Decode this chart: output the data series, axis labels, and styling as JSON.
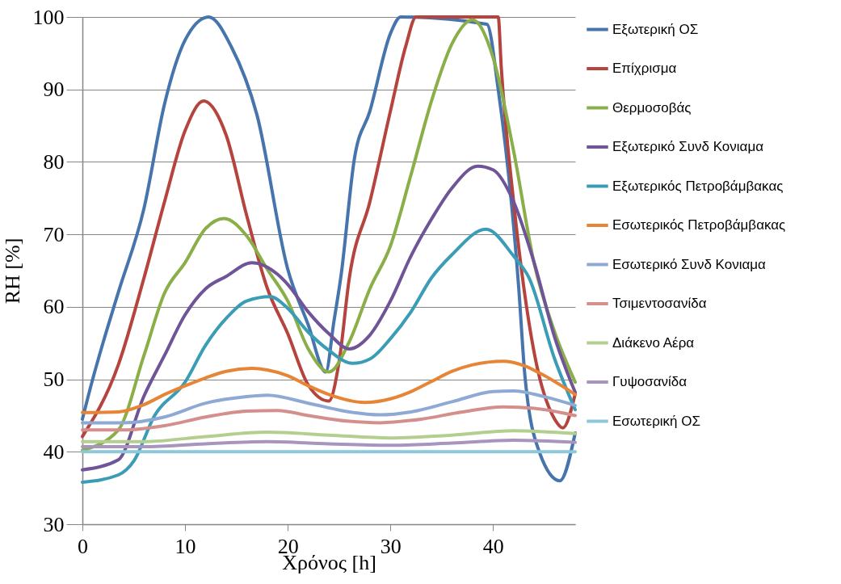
{
  "chart_data": {
    "type": "line",
    "xlabel": "Χρόνος [h]",
    "ylabel": "RH [%]",
    "xlim": [
      0,
      48
    ],
    "xticks": [
      0,
      10,
      20,
      30,
      40
    ],
    "ylim": [
      30,
      100
    ],
    "yticks": [
      30,
      40,
      50,
      60,
      70,
      80,
      90,
      100
    ],
    "grid": "y",
    "legend": "right",
    "series": [
      {
        "name": "Εξωτερική ΟΣ",
        "color": "#4674ad",
        "x": [
          0,
          1,
          2,
          3.5,
          6,
          8,
          10,
          12.3,
          14.5,
          17,
          20,
          22,
          23.7,
          24.5,
          25.2,
          26.5,
          28,
          30,
          31,
          39.4,
          40.5,
          42.5,
          43.1,
          44.5,
          46.5,
          48
        ],
        "values": [
          44.5,
          50,
          55,
          62,
          73.6,
          88,
          96.8,
          100,
          95.9,
          86.5,
          65.2,
          57.5,
          51,
          58,
          64.4,
          80.5,
          87,
          97.7,
          100,
          99,
          90,
          62.6,
          50.5,
          40,
          36,
          42.6
        ]
      },
      {
        "name": "Επίχρισμα",
        "color": "#b5443f",
        "x": [
          0,
          3.5,
          6,
          8,
          10,
          11.8,
          14,
          16,
          18,
          20,
          22,
          24,
          25,
          26,
          28,
          30,
          31.5,
          32.5,
          36,
          40.5,
          40.8,
          42,
          43,
          44,
          46,
          46.8,
          48
        ],
        "values": [
          42.1,
          52,
          64,
          74.5,
          84.3,
          88.4,
          83.7,
          72.6,
          62.6,
          56.3,
          49.2,
          47,
          52.4,
          64,
          74.5,
          87,
          96,
          100,
          100,
          100,
          93,
          74.5,
          62.6,
          53.7,
          44.5,
          43.3,
          48
        ]
      },
      {
        "name": "Θερμοσοβάς",
        "color": "#8aae48",
        "x": [
          0,
          3.5,
          6,
          8,
          10,
          12,
          13.8,
          16,
          18,
          20,
          22,
          24,
          26,
          28,
          30,
          32,
          34,
          36,
          38,
          40,
          42,
          44,
          46,
          48
        ],
        "values": [
          40.2,
          43,
          53.3,
          61.9,
          66.1,
          70.8,
          72.2,
          69.8,
          65.2,
          60.8,
          54.2,
          51,
          55.2,
          62.5,
          68.4,
          78.2,
          88.4,
          96.3,
          99.6,
          94.4,
          81.5,
          66,
          56.5,
          49.6
        ]
      },
      {
        "name": "Εξωτερικό Συνδ Κονιαμα",
        "color": "#6f5497",
        "x": [
          0,
          3.5,
          6,
          8,
          10,
          12,
          14,
          16.5,
          19,
          20,
          22,
          24,
          26,
          28,
          30,
          32,
          34,
          36,
          38.5,
          40,
          42,
          44,
          46,
          48
        ],
        "values": [
          37.5,
          38.9,
          47.7,
          53.3,
          58.9,
          62.5,
          64.2,
          66.1,
          64.5,
          63.1,
          59.3,
          56.3,
          54.2,
          56.1,
          60.8,
          67,
          72.1,
          76.4,
          79.4,
          78.9,
          74.5,
          66.1,
          55.8,
          48.2
        ]
      },
      {
        "name": "Εξωτερικός Πετροβάμβακας",
        "color": "#3a9db5",
        "x": [
          0,
          3.5,
          5,
          7,
          10,
          12,
          14,
          16,
          18.3,
          20,
          22,
          24,
          26.3,
          28,
          30,
          32,
          34,
          36,
          39.3,
          42,
          43.5,
          46,
          48
        ],
        "values": [
          35.8,
          36.8,
          38.7,
          44.9,
          49.6,
          54.7,
          58.4,
          60.8,
          61.4,
          59.8,
          56.5,
          54,
          52.2,
          52.8,
          55.6,
          59.3,
          64,
          67.2,
          70.7,
          67,
          64,
          52.8,
          45.8
        ]
      },
      {
        "name": "Εσωτερικός Πετροβάμβακας",
        "color": "#e68535",
        "x": [
          0,
          3.5,
          6,
          8,
          10,
          12,
          14,
          16.5,
          18,
          20,
          22,
          24,
          27.5,
          30,
          32,
          34,
          36,
          38,
          41,
          43,
          45,
          48
        ],
        "values": [
          45.4,
          45.5,
          46.5,
          47.9,
          49.1,
          50.2,
          51.1,
          51.5,
          51.3,
          50.5,
          49.1,
          47.9,
          46.8,
          47.3,
          48.3,
          49.7,
          51.1,
          52,
          52.5,
          51.9,
          50.5,
          47.9
        ]
      },
      {
        "name": "Εσωτερικό Συνδ Κονιαμα",
        "color": "#8ea9d4",
        "x": [
          0,
          4,
          8,
          12,
          16,
          18,
          22,
          26,
          29,
          32,
          36,
          40,
          42,
          45,
          48
        ],
        "values": [
          44,
          44,
          44.8,
          46.7,
          47.6,
          47.8,
          46.7,
          45.5,
          45.1,
          45.5,
          46.9,
          48.3,
          48.4,
          47.6,
          46.4
        ]
      },
      {
        "name": "Τσιμεντοσανίδα",
        "color": "#d48f8d",
        "x": [
          0,
          4,
          8,
          12,
          16,
          19,
          22,
          26,
          29,
          33,
          37,
          41,
          44,
          48
        ],
        "values": [
          43,
          43,
          43.6,
          44.8,
          45.6,
          45.7,
          45,
          44.2,
          44,
          44.5,
          45.5,
          46.2,
          46,
          45
        ]
      },
      {
        "name": "Διάκενο Αέρα",
        "color": "#b3cf8f",
        "x": [
          0,
          6,
          12,
          18,
          24,
          30,
          36,
          42,
          48
        ],
        "values": [
          41.4,
          41.4,
          42.1,
          42.7,
          42.3,
          41.9,
          42.3,
          42.9,
          42.5
        ]
      },
      {
        "name": "Γυψοσανίδα",
        "color": "#a795c0",
        "x": [
          0,
          6,
          12,
          18,
          24,
          30,
          36,
          42,
          48
        ],
        "values": [
          40.7,
          40.7,
          41.1,
          41.4,
          41.1,
          40.9,
          41.2,
          41.6,
          41.3
        ]
      },
      {
        "name": "Εσωτερική ΟΣ",
        "color": "#8dc7da",
        "x": [
          0,
          12,
          24,
          36,
          48
        ],
        "values": [
          40,
          40,
          40,
          40,
          40
        ]
      }
    ]
  }
}
